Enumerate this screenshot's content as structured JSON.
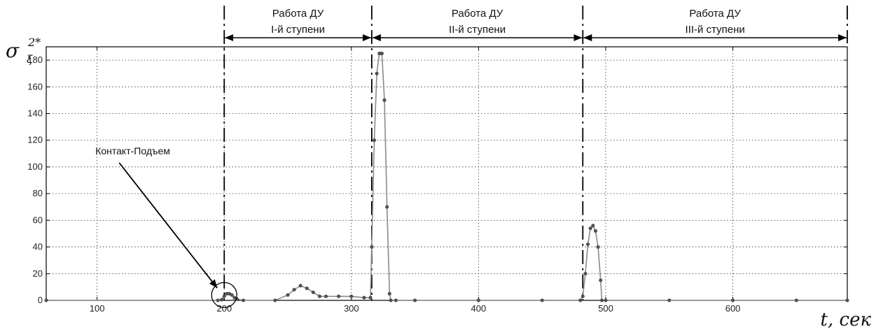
{
  "chart_data": {
    "type": "line",
    "title": "",
    "xlabel": "t, сек",
    "ylabel": {
      "symbol": "σ",
      "subscript": "ξ",
      "superscript": "2*"
    },
    "xlim": [
      60,
      690
    ],
    "ylim": [
      0,
      190
    ],
    "xticks": [
      100,
      200,
      300,
      400,
      500,
      600
    ],
    "yticks": [
      0,
      20,
      40,
      60,
      80,
      100,
      120,
      140,
      160,
      180
    ],
    "grid": true,
    "series": [
      {
        "name": "",
        "color": "#555555",
        "x": [
          60,
          195,
          198,
          200,
          202,
          204,
          206,
          208,
          210,
          215,
          240,
          250,
          255,
          260,
          265,
          270,
          275,
          280,
          290,
          300,
          310,
          315,
          316,
          318,
          320,
          322,
          324,
          326,
          328,
          330,
          331,
          335,
          350,
          400,
          450,
          480,
          482,
          484,
          486,
          488,
          490,
          492,
          494,
          496,
          497,
          500,
          550,
          600,
          650,
          690
        ],
        "y": [
          0,
          0,
          0.5,
          3,
          5,
          5,
          4,
          2,
          1,
          0,
          0,
          4,
          8,
          11,
          9,
          6,
          3,
          3,
          3,
          3,
          2,
          2,
          40,
          120,
          170,
          185,
          185,
          150,
          70,
          5,
          0,
          0,
          0,
          0,
          0,
          0,
          3,
          20,
          42,
          54,
          56,
          52,
          40,
          15,
          0,
          0,
          0,
          0,
          0,
          0
        ]
      }
    ],
    "phase_boundaries": [
      200,
      316,
      482,
      690
    ],
    "phases": [
      {
        "line1": "Работа ДУ",
        "line2": "I-й ступени",
        "from": 200,
        "to": 316
      },
      {
        "line1": "Работа ДУ",
        "line2": "II-й ступени",
        "from": 316,
        "to": 482
      },
      {
        "line1": "Работа ДУ",
        "line2": "III-й ступени",
        "from": 482,
        "to": 690
      }
    ],
    "annotations": [
      {
        "text": "Контакт-Подъем",
        "x": 200,
        "y": 4
      }
    ]
  }
}
